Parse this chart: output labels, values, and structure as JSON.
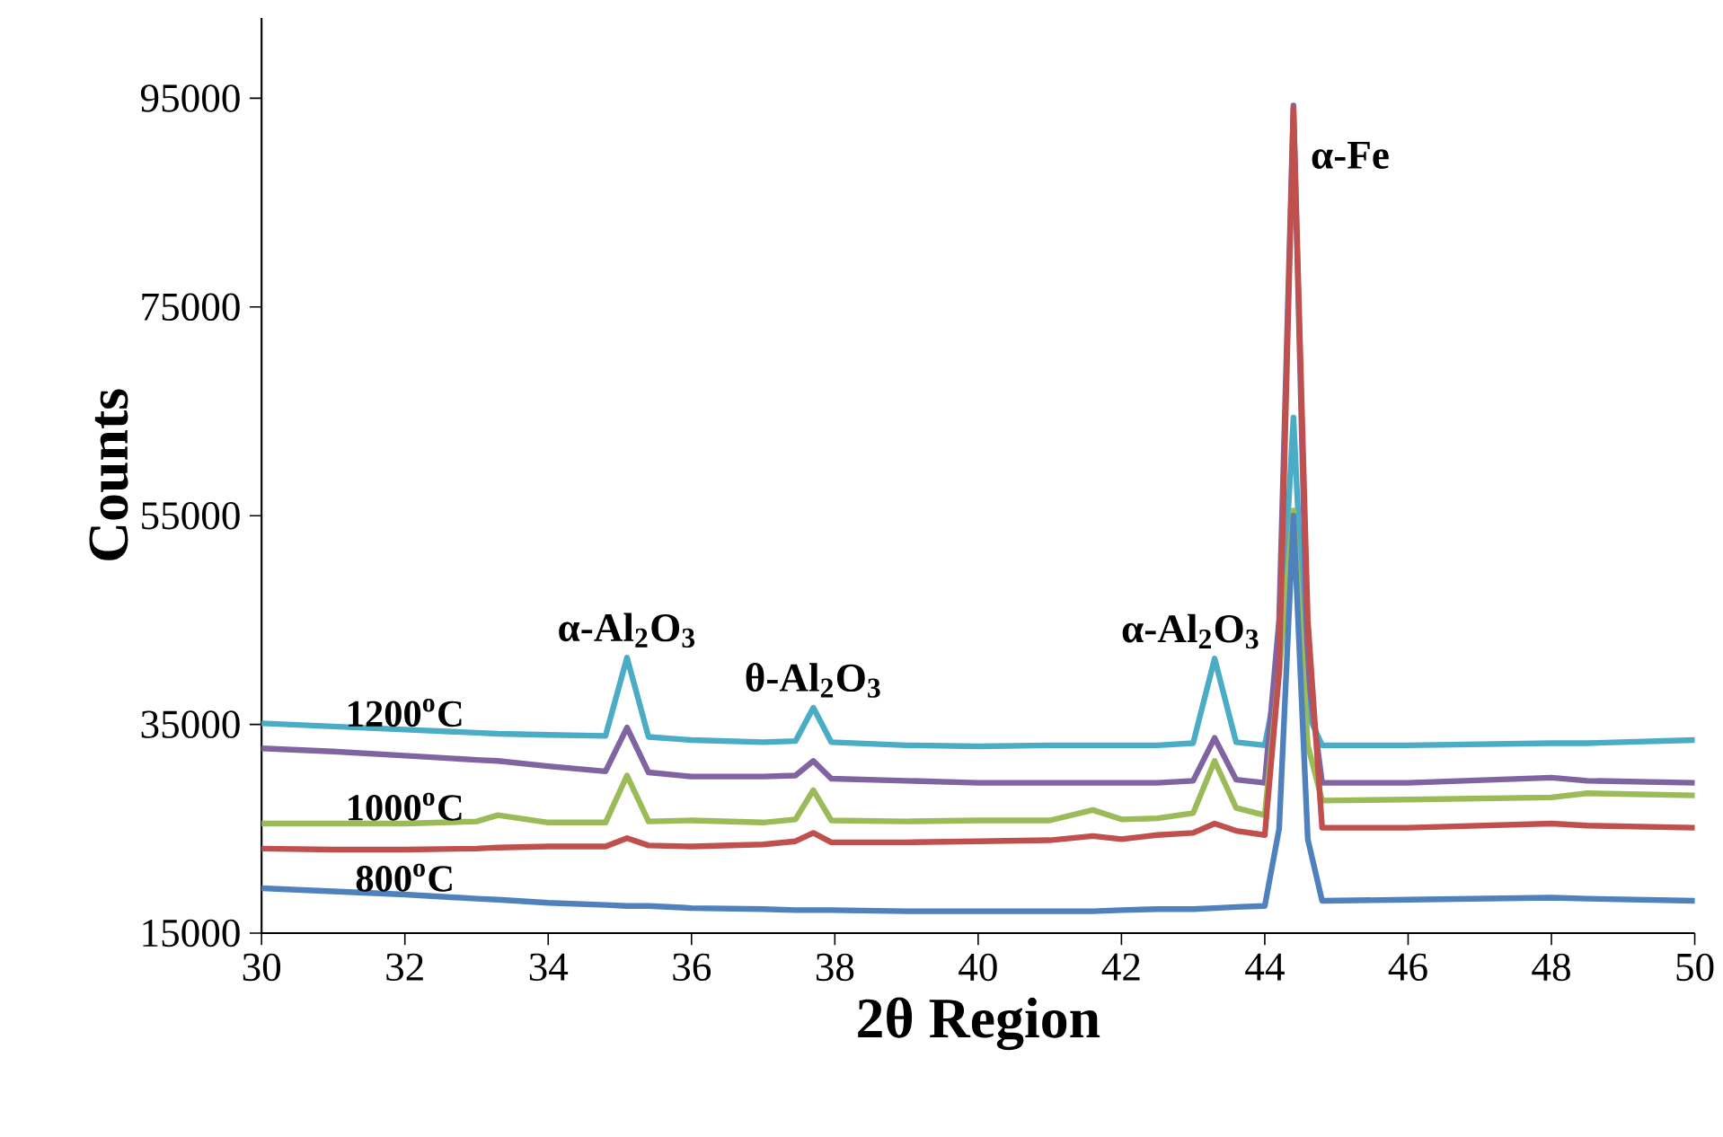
{
  "chart_data": {
    "type": "line",
    "xlabel": "2θ Region",
    "ylabel": "Counts",
    "x": [
      30,
      31,
      32,
      33,
      33.3,
      34,
      34.8,
      35.1,
      35.4,
      36,
      37,
      37.45,
      37.7,
      37.95,
      39,
      40,
      41,
      41.6,
      42,
      42.5,
      43,
      43.3,
      43.6,
      44.0,
      44.2,
      44.4,
      44.6,
      44.8,
      46,
      48,
      48.5,
      50
    ],
    "series": [
      {
        "name": "1200$^{o}$C",
        "color": "#4bacc6",
        "values": [
          35100,
          34800,
          34500,
          34200,
          34100,
          34000,
          33900,
          41400,
          33800,
          33500,
          33300,
          33400,
          36600,
          33300,
          33000,
          32900,
          33000,
          33000,
          33000,
          33000,
          33200,
          41300,
          33300,
          33000,
          40000,
          64400,
          36000,
          33000,
          33000,
          33200,
          33200,
          33500
        ]
      },
      {
        "color": "#8064a2",
        "values": [
          32700,
          32400,
          32000,
          31600,
          31500,
          31000,
          30500,
          34700,
          30400,
          30000,
          30000,
          30100,
          31500,
          29800,
          29600,
          29400,
          29400,
          29400,
          29400,
          29400,
          29600,
          33700,
          29700,
          29400,
          45000,
          94300,
          40000,
          29400,
          29400,
          29900,
          29600,
          29400
        ]
      },
      {
        "name": "1000$^{o}$C",
        "color": "#9bbb59",
        "values": [
          25500,
          25500,
          25500,
          25700,
          26300,
          25600,
          25600,
          30100,
          25700,
          25800,
          25600,
          25900,
          28700,
          25800,
          25700,
          25800,
          25800,
          26800,
          25900,
          26000,
          26500,
          31500,
          27000,
          26300,
          40000,
          55500,
          33000,
          27700,
          27800,
          28000,
          28400,
          28200
        ]
      },
      {
        "color": "#c0504d",
        "values": [
          23100,
          23000,
          23000,
          23100,
          23200,
          23300,
          23300,
          24100,
          23400,
          23300,
          23500,
          23800,
          24600,
          23700,
          23700,
          23800,
          23900,
          24300,
          24000,
          24400,
          24600,
          25500,
          24800,
          24400,
          40000,
          94000,
          45000,
          25100,
          25100,
          25500,
          25300,
          25100
        ]
      },
      {
        "name": "800$^{o}$C",
        "color": "#4f81bd",
        "values": [
          19300,
          19000,
          18700,
          18300,
          18200,
          17900,
          17700,
          17600,
          17600,
          17400,
          17300,
          17200,
          17200,
          17200,
          17100,
          17100,
          17100,
          17100,
          17200,
          17300,
          17300,
          17400,
          17500,
          17600,
          25000,
          55000,
          24000,
          18100,
          18200,
          18400,
          18300,
          18100
        ]
      }
    ],
    "annotations": [
      {
        "text": "α-Al$_{2}$O$_{3}$",
        "x": 35.1,
        "y": 41400
      },
      {
        "text": "θ-Al$_{2}$O$_{3}$",
        "x": 37.7,
        "y": 36600
      },
      {
        "text": "α-Al$_{2}$O$_{3}$",
        "x": 43.3,
        "y": 41300
      },
      {
        "text": "α-Fe",
        "x": 44.4,
        "y": 94300
      }
    ],
    "xlim": [
      30,
      50
    ],
    "ylim": [
      15000,
      102700
    ],
    "xticks": [
      30,
      32,
      34,
      36,
      38,
      40,
      42,
      44,
      46,
      48,
      50
    ],
    "yticks": [
      15000,
      35000,
      55000,
      75000,
      95000
    ],
    "grid": false,
    "marker": "none",
    "line_style": "solid"
  }
}
